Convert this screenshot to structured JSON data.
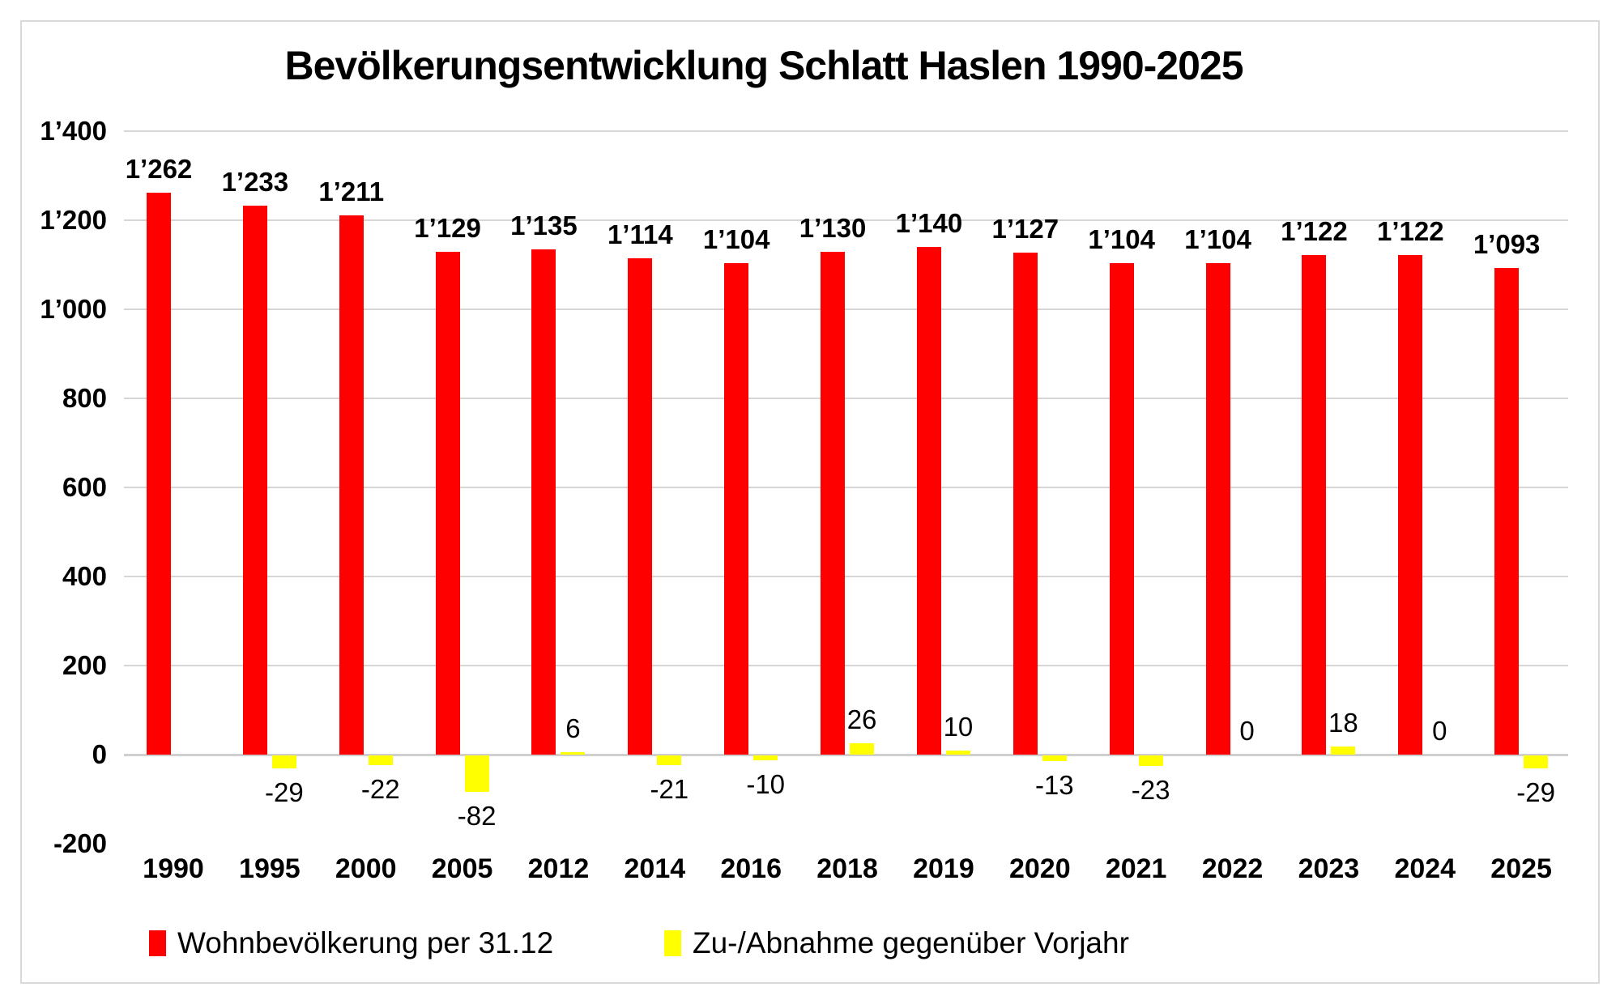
{
  "chart_data": {
    "type": "bar",
    "title": "Bevölkerungsentwicklung Schlatt Haslen 1990-2025",
    "categories": [
      "1990",
      "1995",
      "2000",
      "2005",
      "2012",
      "2014",
      "2016",
      "2018",
      "2019",
      "2020",
      "2021",
      "2022",
      "2023",
      "2024",
      "2025"
    ],
    "series": [
      {
        "name": "Wohnbevölkerung per 31.12",
        "color": "#ff0000",
        "values": [
          1262,
          1233,
          1211,
          1129,
          1135,
          1114,
          1104,
          1130,
          1140,
          1127,
          1104,
          1104,
          1122,
          1122,
          1093
        ],
        "labels": [
          "1’262",
          "1’233",
          "1’211",
          "1’129",
          "1’135",
          "1’114",
          "1’104",
          "1’130",
          "1’140",
          "1’127",
          "1’104",
          "1’104",
          "1’122",
          "1’122",
          "1’093"
        ]
      },
      {
        "name": "Zu-/Abnahme gegenüber Vorjahr",
        "color": "#ffff00",
        "values": [
          null,
          -29,
          -22,
          -82,
          6,
          -21,
          -10,
          26,
          10,
          -13,
          -23,
          0,
          18,
          0,
          -29
        ],
        "labels": [
          null,
          "-29",
          "-22",
          "-82",
          "6",
          "-21",
          "-10",
          "26",
          "10",
          "-13",
          "-23",
          "0",
          "18",
          "0",
          "-29"
        ]
      }
    ],
    "y_axis": {
      "min": -200,
      "max": 1400,
      "step": 200,
      "ticks": [
        {
          "value": 1400,
          "label": "1’400"
        },
        {
          "value": 1200,
          "label": "1’200"
        },
        {
          "value": 1000,
          "label": "1’000"
        },
        {
          "value": 800,
          "label": "800"
        },
        {
          "value": 600,
          "label": "600"
        },
        {
          "value": 400,
          "label": "400"
        },
        {
          "value": 200,
          "label": "200"
        },
        {
          "value": 0,
          "label": "0"
        },
        {
          "value": -200,
          "label": "-200"
        }
      ]
    },
    "grid": true,
    "legend_position": "bottom",
    "colors": {
      "population": "#ff0000",
      "change": "#ffff00",
      "gridline": "#d6d6d6",
      "frame_border": "#d9d9d9",
      "text": "#000000"
    }
  },
  "legend": {
    "items": [
      {
        "label": "Wohnbevölkerung per 31.12",
        "color": "#ff0000"
      },
      {
        "label": "Zu-/Abnahme gegenüber Vorjahr",
        "color": "#ffff00"
      }
    ]
  }
}
